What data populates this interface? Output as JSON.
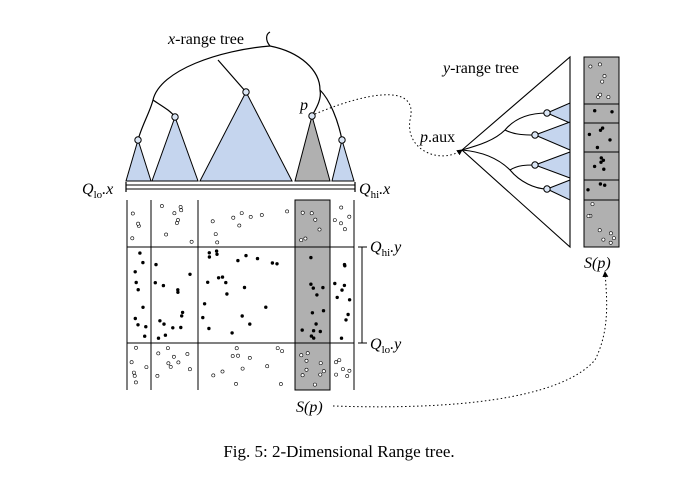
{
  "labels": {
    "x_range_tree": {
      "var": "x",
      "text": "-range tree"
    },
    "y_range_tree": {
      "var": "y",
      "text": "-range tree"
    },
    "p": "p",
    "p_aux": {
      "var": "p",
      "text": ".aux"
    },
    "q_lo_x": {
      "base": "Q",
      "sub": "lo",
      "tail": ".x"
    },
    "q_hi_x": {
      "base": "Q",
      "sub": "hi",
      "tail": ".x"
    },
    "q_hi_y": {
      "base": "Q",
      "sub": "hi",
      "tail": ".y"
    },
    "q_lo_y": {
      "base": "Q",
      "sub": "lo",
      "tail": ".y"
    },
    "s_p_bottom": "S(p)",
    "s_p_right": "S(p)"
  },
  "caption": "Fig. 5: 2-Dimensional Range tree.",
  "colors": {
    "triangle_fill": "#c5d5ee",
    "highlight_fill": "#b0b0b0",
    "stroke": "#000000",
    "node_fill": "#dbe6f5",
    "background": "#ffffff"
  }
}
